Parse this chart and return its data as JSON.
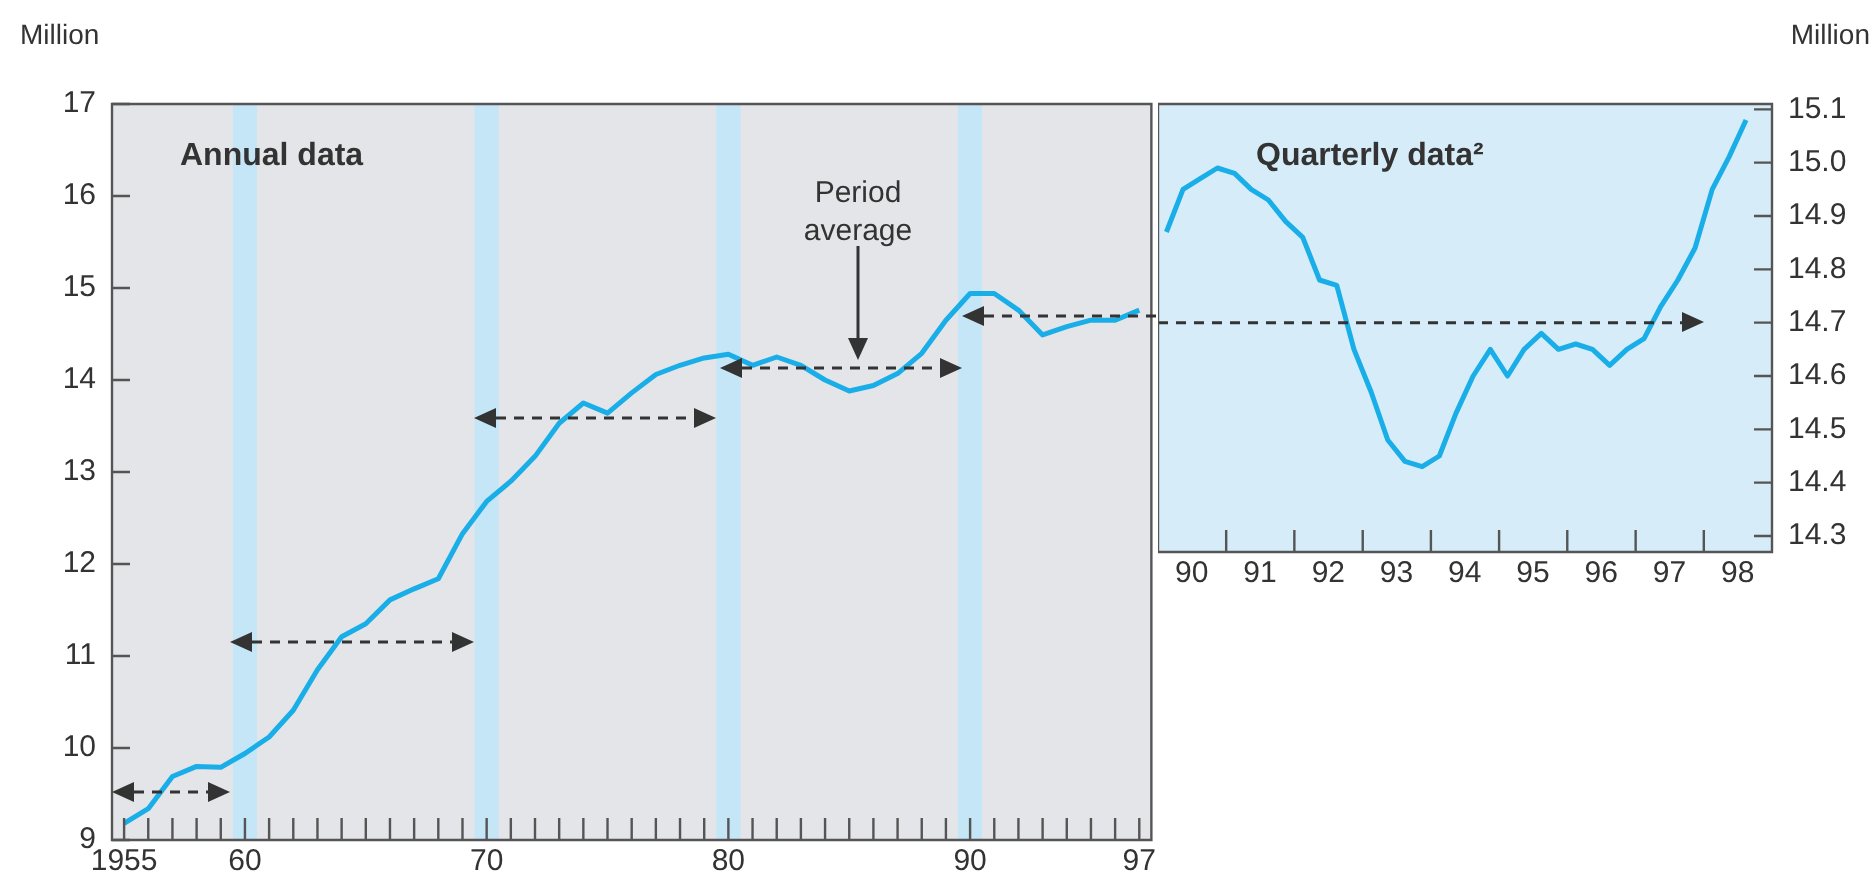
{
  "chart_data": [
    {
      "type": "line",
      "title": "Annual data",
      "ylabel": "Million",
      "marker": "none",
      "x": [
        1955,
        1956,
        1957,
        1958,
        1959,
        1960,
        1961,
        1962,
        1963,
        1964,
        1965,
        1966,
        1967,
        1968,
        1969,
        1970,
        1971,
        1972,
        1973,
        1974,
        1975,
        1976,
        1977,
        1978,
        1979,
        1980,
        1981,
        1982,
        1983,
        1984,
        1985,
        1986,
        1987,
        1988,
        1989,
        1990,
        1991,
        1992,
        1993,
        1994,
        1995,
        1996,
        1997
      ],
      "xlim": [
        1954.5,
        1997.5
      ],
      "xticks": [
        {
          "value": 1955,
          "label": "1955"
        },
        {
          "value": 1956,
          "label": null
        },
        {
          "value": 1957,
          "label": null
        },
        {
          "value": 1958,
          "label": null
        },
        {
          "value": 1959,
          "label": null
        },
        {
          "value": 1960,
          "label": "60"
        },
        {
          "value": 1961,
          "label": null
        },
        {
          "value": 1962,
          "label": null
        },
        {
          "value": 1963,
          "label": null
        },
        {
          "value": 1964,
          "label": null
        },
        {
          "value": 1965,
          "label": null
        },
        {
          "value": 1966,
          "label": null
        },
        {
          "value": 1967,
          "label": null
        },
        {
          "value": 1968,
          "label": null
        },
        {
          "value": 1969,
          "label": null
        },
        {
          "value": 1970,
          "label": "70"
        },
        {
          "value": 1971,
          "label": null
        },
        {
          "value": 1972,
          "label": null
        },
        {
          "value": 1973,
          "label": null
        },
        {
          "value": 1974,
          "label": null
        },
        {
          "value": 1975,
          "label": null
        },
        {
          "value": 1976,
          "label": null
        },
        {
          "value": 1977,
          "label": null
        },
        {
          "value": 1978,
          "label": null
        },
        {
          "value": 1979,
          "label": null
        },
        {
          "value": 1980,
          "label": "80"
        },
        {
          "value": 1981,
          "label": null
        },
        {
          "value": 1982,
          "label": null
        },
        {
          "value": 1983,
          "label": null
        },
        {
          "value": 1984,
          "label": null
        },
        {
          "value": 1985,
          "label": null
        },
        {
          "value": 1986,
          "label": null
        },
        {
          "value": 1987,
          "label": null
        },
        {
          "value": 1988,
          "label": null
        },
        {
          "value": 1989,
          "label": null
        },
        {
          "value": 1990,
          "label": "90"
        },
        {
          "value": 1991,
          "label": null
        },
        {
          "value": 1992,
          "label": null
        },
        {
          "value": 1993,
          "label": null
        },
        {
          "value": 1994,
          "label": null
        },
        {
          "value": 1995,
          "label": null
        },
        {
          "value": 1996,
          "label": null
        },
        {
          "value": 1997,
          "label": "97"
        }
      ],
      "ylim": [
        9,
        17
      ],
      "yticks": [
        9,
        10,
        11,
        12,
        13,
        14,
        15,
        16,
        17
      ],
      "series": [
        {
          "color": "#1aaee8",
          "values": [
            9.18,
            9.34,
            9.69,
            9.8,
            9.79,
            9.94,
            10.12,
            10.41,
            10.85,
            11.21,
            11.35,
            11.61,
            11.73,
            11.84,
            12.33,
            12.68,
            12.9,
            13.17,
            13.53,
            13.75,
            13.64,
            13.86,
            14.06,
            14.16,
            14.24,
            14.28,
            14.16,
            14.25,
            14.16,
            14.0,
            13.88,
            13.94,
            14.07,
            14.29,
            14.65,
            14.94,
            14.94,
            14.76,
            14.49,
            14.58,
            14.65,
            14.65,
            14.76
          ]
        }
      ],
      "bands": [
        {
          "axis": "x",
          "from": 1959.5,
          "to": 1960.5,
          "color": "#c4e6f7"
        },
        {
          "axis": "x",
          "from": 1969.5,
          "to": 1970.5,
          "color": "#c4e6f7"
        },
        {
          "axis": "x",
          "from": 1979.5,
          "to": 1980.5,
          "color": "#c4e6f7"
        },
        {
          "axis": "x",
          "from": 1989.5,
          "to": 1990.5,
          "color": "#c4e6f7"
        }
      ],
      "annotations": [
        "Period average"
      ]
    },
    {
      "type": "line",
      "title": "Quarterly data²",
      "y2label": "Million",
      "marker": "none",
      "xlim": [
        "1990-01-01",
        "1999-01-01"
      ],
      "xticks": [
        {
          "value": "1990-07-01",
          "label": "90"
        },
        {
          "value": "1991-01-01",
          "label": null
        },
        {
          "value": "1991-07-01",
          "label": "91"
        },
        {
          "value": "1992-01-01",
          "label": null
        },
        {
          "value": "1992-07-01",
          "label": "92"
        },
        {
          "value": "1993-01-01",
          "label": null
        },
        {
          "value": "1993-07-01",
          "label": "93"
        },
        {
          "value": "1994-01-01",
          "label": null
        },
        {
          "value": "1994-07-01",
          "label": "94"
        },
        {
          "value": "1995-01-01",
          "label": null
        },
        {
          "value": "1995-07-01",
          "label": "95"
        },
        {
          "value": "1996-01-01",
          "label": null
        },
        {
          "value": "1996-07-01",
          "label": "96"
        },
        {
          "value": "1997-01-01",
          "label": null
        },
        {
          "value": "1997-07-01",
          "label": "97"
        },
        {
          "value": "1998-01-01",
          "label": null
        },
        {
          "value": "1998-07-01",
          "label": "98"
        }
      ],
      "y2lim": [
        14.27,
        15.11
      ],
      "y2ticks": [
        14.3,
        14.4,
        14.5,
        14.6,
        14.7,
        14.8,
        14.9,
        {
          "value": 15,
          "label": "15.0"
        },
        15.1
      ],
      "series": [
        {
          "color": "#1aaee8",
          "axis": "y2",
          "x": [
            "1990-02-15",
            "1990-05-15",
            "1990-08-15",
            "1990-11-15",
            "1991-02-15",
            "1991-05-15",
            "1991-08-15",
            "1991-11-15",
            "1992-02-15",
            "1992-05-15",
            "1992-08-15",
            "1992-11-15",
            "1993-02-15",
            "1993-05-15",
            "1993-08-15",
            "1993-11-15",
            "1994-02-15",
            "1994-05-15",
            "1994-08-15",
            "1994-11-15",
            "1995-02-15",
            "1995-05-15",
            "1995-08-15",
            "1995-11-15",
            "1996-02-15",
            "1996-05-15",
            "1996-08-15",
            "1996-11-15",
            "1997-02-15",
            "1997-05-15",
            "1997-08-15",
            "1997-11-15",
            "1998-02-15",
            "1998-05-15",
            "1998-08-15"
          ],
          "values": [
            14.87,
            14.95,
            14.97,
            14.99,
            14.98,
            14.95,
            14.93,
            14.89,
            14.86,
            14.78,
            14.77,
            14.65,
            14.57,
            14.48,
            14.44,
            14.43,
            14.45,
            14.53,
            14.6,
            14.65,
            14.6,
            14.65,
            14.68,
            14.65,
            14.66,
            14.65,
            14.62,
            14.65,
            14.67,
            14.73,
            14.78,
            14.84,
            14.95,
            15.01,
            15.08
          ]
        }
      ],
      "ref_lines": [
        {
          "axis": "y2",
          "value": 14.7,
          "color": "#333333",
          "line_style": "dashed"
        }
      ]
    }
  ]
}
